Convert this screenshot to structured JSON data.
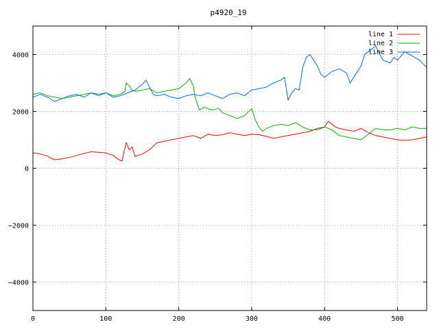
{
  "chart_data": {
    "type": "line",
    "title": "p4920_19",
    "xlabel": "",
    "ylabel": "",
    "xlim": [
      0,
      540
    ],
    "ylim": [
      -5000,
      5000
    ],
    "xticks": [
      0,
      100,
      200,
      300,
      400,
      500
    ],
    "yticks": [
      -4000,
      -2000,
      0,
      2000,
      4000
    ],
    "grid": true,
    "legend_position": "top-right",
    "series": [
      {
        "name": "line 1",
        "color": "#ff0000",
        "points": [
          [
            0,
            550
          ],
          [
            10,
            500
          ],
          [
            20,
            430
          ],
          [
            25,
            350
          ],
          [
            30,
            300
          ],
          [
            40,
            330
          ],
          [
            50,
            380
          ],
          [
            60,
            450
          ],
          [
            70,
            520
          ],
          [
            80,
            580
          ],
          [
            90,
            560
          ],
          [
            100,
            540
          ],
          [
            110,
            450
          ],
          [
            118,
            300
          ],
          [
            122,
            250
          ],
          [
            125,
            600
          ],
          [
            128,
            900
          ],
          [
            132,
            650
          ],
          [
            136,
            750
          ],
          [
            140,
            420
          ],
          [
            150,
            500
          ],
          [
            160,
            650
          ],
          [
            170,
            900
          ],
          [
            180,
            950
          ],
          [
            190,
            1000
          ],
          [
            200,
            1050
          ],
          [
            210,
            1100
          ],
          [
            220,
            1150
          ],
          [
            230,
            1050
          ],
          [
            240,
            1200
          ],
          [
            250,
            1150
          ],
          [
            260,
            1180
          ],
          [
            270,
            1250
          ],
          [
            280,
            1200
          ],
          [
            290,
            1150
          ],
          [
            300,
            1200
          ],
          [
            310,
            1180
          ],
          [
            320,
            1120
          ],
          [
            330,
            1050
          ],
          [
            340,
            1100
          ],
          [
            350,
            1150
          ],
          [
            360,
            1200
          ],
          [
            370,
            1250
          ],
          [
            380,
            1300
          ],
          [
            390,
            1400
          ],
          [
            400,
            1450
          ],
          [
            405,
            1650
          ],
          [
            410,
            1550
          ],
          [
            415,
            1450
          ],
          [
            420,
            1400
          ],
          [
            430,
            1350
          ],
          [
            440,
            1300
          ],
          [
            450,
            1400
          ],
          [
            460,
            1250
          ],
          [
            470,
            1150
          ],
          [
            480,
            1100
          ],
          [
            490,
            1050
          ],
          [
            500,
            1000
          ],
          [
            510,
            980
          ],
          [
            520,
            1000
          ],
          [
            530,
            1050
          ],
          [
            540,
            1100
          ]
        ]
      },
      {
        "name": "line 2",
        "color": "#00b000",
        "points": [
          [
            0,
            2600
          ],
          [
            10,
            2650
          ],
          [
            20,
            2550
          ],
          [
            30,
            2500
          ],
          [
            40,
            2450
          ],
          [
            50,
            2500
          ],
          [
            60,
            2550
          ],
          [
            70,
            2600
          ],
          [
            80,
            2650
          ],
          [
            90,
            2550
          ],
          [
            100,
            2650
          ],
          [
            110,
            2550
          ],
          [
            120,
            2600
          ],
          [
            126,
            2700
          ],
          [
            128,
            3000
          ],
          [
            132,
            2900
          ],
          [
            136,
            2750
          ],
          [
            140,
            2700
          ],
          [
            150,
            2750
          ],
          [
            160,
            2800
          ],
          [
            170,
            2650
          ],
          [
            180,
            2700
          ],
          [
            190,
            2750
          ],
          [
            200,
            2800
          ],
          [
            210,
            3000
          ],
          [
            215,
            3150
          ],
          [
            220,
            2900
          ],
          [
            222,
            2550
          ],
          [
            225,
            2300
          ],
          [
            228,
            2050
          ],
          [
            235,
            2150
          ],
          [
            245,
            2050
          ],
          [
            255,
            2100
          ],
          [
            260,
            1950
          ],
          [
            270,
            1850
          ],
          [
            280,
            1750
          ],
          [
            290,
            1850
          ],
          [
            300,
            2100
          ],
          [
            305,
            1700
          ],
          [
            310,
            1450
          ],
          [
            315,
            1300
          ],
          [
            320,
            1400
          ],
          [
            330,
            1500
          ],
          [
            340,
            1550
          ],
          [
            350,
            1500
          ],
          [
            360,
            1600
          ],
          [
            370,
            1450
          ],
          [
            380,
            1350
          ],
          [
            390,
            1350
          ],
          [
            400,
            1450
          ],
          [
            410,
            1350
          ],
          [
            420,
            1150
          ],
          [
            430,
            1100
          ],
          [
            440,
            1050
          ],
          [
            450,
            1000
          ],
          [
            460,
            1200
          ],
          [
            470,
            1400
          ],
          [
            480,
            1350
          ],
          [
            490,
            1350
          ],
          [
            500,
            1400
          ],
          [
            510,
            1350
          ],
          [
            520,
            1450
          ],
          [
            530,
            1400
          ],
          [
            540,
            1400
          ]
        ]
      },
      {
        "name": "line 3",
        "color": "#0066ff",
        "points": [
          [
            0,
            2500
          ],
          [
            10,
            2600
          ],
          [
            20,
            2500
          ],
          [
            30,
            2350
          ],
          [
            40,
            2450
          ],
          [
            50,
            2550
          ],
          [
            60,
            2600
          ],
          [
            70,
            2500
          ],
          [
            80,
            2650
          ],
          [
            90,
            2600
          ],
          [
            100,
            2650
          ],
          [
            110,
            2500
          ],
          [
            120,
            2550
          ],
          [
            130,
            2650
          ],
          [
            140,
            2750
          ],
          [
            150,
            2950
          ],
          [
            155,
            3100
          ],
          [
            160,
            2850
          ],
          [
            165,
            2600
          ],
          [
            170,
            2550
          ],
          [
            180,
            2600
          ],
          [
            190,
            2500
          ],
          [
            200,
            2450
          ],
          [
            210,
            2550
          ],
          [
            220,
            2600
          ],
          [
            230,
            2550
          ],
          [
            240,
            2650
          ],
          [
            250,
            2550
          ],
          [
            260,
            2450
          ],
          [
            270,
            2600
          ],
          [
            280,
            2650
          ],
          [
            290,
            2550
          ],
          [
            300,
            2750
          ],
          [
            310,
            2800
          ],
          [
            320,
            2850
          ],
          [
            330,
            3000
          ],
          [
            340,
            3100
          ],
          [
            345,
            3200
          ],
          [
            350,
            2400
          ],
          [
            355,
            2650
          ],
          [
            360,
            2800
          ],
          [
            365,
            2750
          ],
          [
            370,
            3550
          ],
          [
            375,
            3900
          ],
          [
            380,
            4000
          ],
          [
            385,
            3800
          ],
          [
            390,
            3600
          ],
          [
            395,
            3300
          ],
          [
            400,
            3200
          ],
          [
            410,
            3400
          ],
          [
            420,
            3500
          ],
          [
            430,
            3350
          ],
          [
            435,
            3000
          ],
          [
            440,
            3200
          ],
          [
            450,
            3600
          ],
          [
            455,
            4000
          ],
          [
            460,
            4100
          ],
          [
            470,
            4300
          ],
          [
            475,
            4050
          ],
          [
            480,
            3800
          ],
          [
            490,
            3700
          ],
          [
            495,
            3900
          ],
          [
            500,
            3800
          ],
          [
            510,
            4100
          ],
          [
            520,
            3950
          ],
          [
            530,
            3800
          ],
          [
            540,
            3550
          ]
        ]
      }
    ]
  }
}
